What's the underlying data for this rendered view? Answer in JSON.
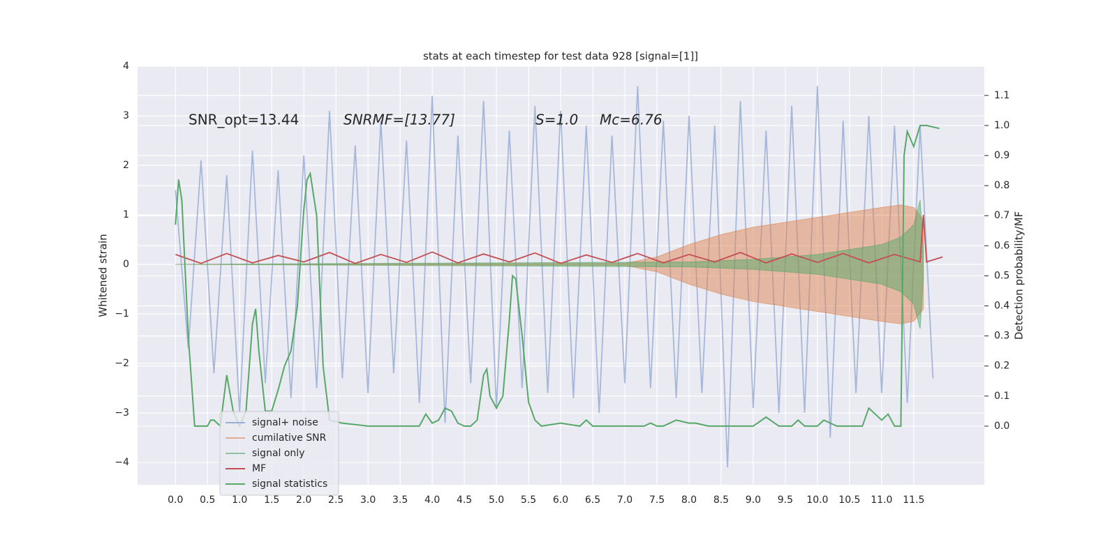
{
  "chart_data": {
    "type": "line",
    "title": "stats at each timestep for test data 928 [signal=[1]]",
    "y_label": "Whitened strain",
    "y2_label": "Detection probability/MF",
    "annotations": [
      "SNR_opt=13.44",
      "SNRMF=[13.77]",
      "S=1.0",
      "Mc=6.76"
    ],
    "xlim": [
      -0.59,
      12.6
    ],
    "ylim": [
      -4.45,
      4.0
    ],
    "y2lim": [
      -0.195,
      1.197
    ],
    "xticks": [
      {
        "value": 0,
        "label": "0.0"
      },
      0.5,
      {
        "value": 1,
        "label": "1.0"
      },
      1.5,
      {
        "value": 2,
        "label": "2.0"
      },
      2.5,
      {
        "value": 3,
        "label": "3.0"
      },
      3.5,
      {
        "value": 4,
        "label": "4.0"
      },
      4.5,
      {
        "value": 5,
        "label": "5.0"
      },
      5.5,
      {
        "value": 6,
        "label": "6.0"
      },
      6.5,
      {
        "value": 7,
        "label": "7.0"
      },
      7.5,
      {
        "value": 8,
        "label": "8.0"
      },
      8.5,
      {
        "value": 9,
        "label": "9.0"
      },
      9.5,
      {
        "value": 10,
        "label": "10.0"
      },
      10.5,
      {
        "value": 11,
        "label": "11.0"
      },
      11.5
    ],
    "yticks": [
      {
        "value": -4,
        "label": "−4"
      },
      {
        "value": -3,
        "label": "−3"
      },
      {
        "value": -2,
        "label": "−2"
      },
      {
        "value": -1,
        "label": "−1"
      },
      0,
      1,
      2,
      3,
      4
    ],
    "y2ticks": [
      {
        "value": 0,
        "label": "0.0"
      },
      0.1,
      0.2,
      0.3,
      0.4,
      0.5,
      0.6,
      0.7,
      0.8,
      0.9,
      {
        "value": 1,
        "label": "1.0"
      },
      1.1
    ],
    "grid": true,
    "legend": "lower left",
    "series": [
      {
        "name": "signal+ noise",
        "style": "line",
        "color": "#9aaed3",
        "x": [
          0,
          0.2,
          0.4,
          0.6,
          0.8,
          1,
          1.2,
          1.4,
          1.6,
          1.8,
          2,
          2.2,
          2.4,
          2.6,
          2.8,
          3,
          3.2,
          3.4,
          3.6,
          3.8,
          4,
          4.2,
          4.4,
          4.6,
          4.8,
          5,
          5.2,
          5.4,
          5.6,
          5.8,
          6,
          6.2,
          6.4,
          6.6,
          6.8,
          7,
          7.2,
          7.4,
          7.6,
          7.8,
          8,
          8.2,
          8.4,
          8.6,
          8.8,
          9,
          9.2,
          9.4,
          9.6,
          9.8,
          10,
          10.2,
          10.4,
          10.6,
          10.8,
          11,
          11.2,
          11.4,
          11.6,
          11.8
        ],
        "values": [
          1.5,
          -1.7,
          2.1,
          -2.2,
          1.8,
          -3.0,
          2.3,
          -2.4,
          1.9,
          -2.7,
          2.2,
          -2.5,
          3.1,
          -2.3,
          2.4,
          -2.6,
          2.9,
          -2.2,
          2.5,
          -2.8,
          3.4,
          -3.2,
          2.6,
          -2.4,
          3.3,
          -2.9,
          2.7,
          -2.5,
          3.2,
          -2.6,
          3.1,
          -2.7,
          2.8,
          -3.0,
          2.6,
          -2.4,
          3.6,
          -2.5,
          2.9,
          -2.7,
          3.0,
          -2.6,
          2.8,
          -4.1,
          3.3,
          -2.9,
          2.7,
          -3.0,
          3.2,
          -3.0,
          3.6,
          -3.5,
          2.9,
          -2.6,
          3.0,
          -2.6,
          2.8,
          -2.8,
          2.8,
          -2.3
        ]
      },
      {
        "name": "cumilative SNR",
        "style": "band",
        "color": "#dd8452",
        "x": [
          0,
          7.0,
          7.5,
          8.0,
          8.5,
          9.0,
          9.5,
          10.0,
          10.5,
          11.0,
          11.3,
          11.5,
          11.65
        ],
        "values": [
          0,
          0.02,
          0.15,
          0.4,
          0.6,
          0.75,
          0.85,
          0.95,
          1.05,
          1.15,
          1.2,
          1.15,
          0.9
        ]
      },
      {
        "name": "signal only",
        "style": "band",
        "color": "#55a868",
        "x": [
          0,
          8,
          9,
          10,
          10.5,
          11,
          11.3,
          11.5,
          11.6,
          11.65
        ],
        "values": [
          0,
          0.05,
          0.1,
          0.2,
          0.3,
          0.4,
          0.55,
          0.8,
          1.3,
          0.3
        ]
      },
      {
        "name": "MF",
        "style": "line",
        "color": "#c44e52",
        "x": [
          0,
          0.4,
          0.8,
          1.2,
          1.6,
          2,
          2.4,
          2.8,
          3.2,
          3.6,
          4,
          4.4,
          4.8,
          5.2,
          5.6,
          6,
          6.4,
          6.8,
          7.2,
          7.6,
          8,
          8.4,
          8.8,
          9.2,
          9.6,
          10,
          10.4,
          10.8,
          11.2,
          11.6,
          11.65,
          11.7,
          11.95
        ],
        "values": [
          0.2,
          0.02,
          0.22,
          0.03,
          0.18,
          0.05,
          0.24,
          0.02,
          0.2,
          0.04,
          0.25,
          0.03,
          0.21,
          0.05,
          0.23,
          0.02,
          0.19,
          0.04,
          0.22,
          0.03,
          0.2,
          0.05,
          0.24,
          0.03,
          0.21,
          0.04,
          0.22,
          0.03,
          0.2,
          0.05,
          1.0,
          0.05,
          0.15
        ]
      },
      {
        "name": "signal statistics",
        "style": "line",
        "axis": "y2",
        "color": "#55a868",
        "x": [
          0,
          0.05,
          0.1,
          0.2,
          0.3,
          0.4,
          0.5,
          0.55,
          0.6,
          0.7,
          0.8,
          0.9,
          1.0,
          1.1,
          1.2,
          1.25,
          1.3,
          1.4,
          1.5,
          1.6,
          1.7,
          1.8,
          1.9,
          2.0,
          2.05,
          2.1,
          2.2,
          2.3,
          2.4,
          2.6,
          3.0,
          3.5,
          3.8,
          3.9,
          4.0,
          4.1,
          4.2,
          4.3,
          4.4,
          4.5,
          4.6,
          4.7,
          4.8,
          4.85,
          4.9,
          5.0,
          5.1,
          5.2,
          5.25,
          5.3,
          5.4,
          5.5,
          5.6,
          5.7,
          6.0,
          6.3,
          6.4,
          6.5,
          7.0,
          7.3,
          7.4,
          7.5,
          7.6,
          7.8,
          8.0,
          8.1,
          8.3,
          9.0,
          9.2,
          9.4,
          9.6,
          9.7,
          9.8,
          10.0,
          10.1,
          10.3,
          10.7,
          10.8,
          10.9,
          11.0,
          11.1,
          11.2,
          11.3,
          11.35,
          11.4,
          11.5,
          11.6,
          11.7,
          11.9
        ],
        "values": [
          0.67,
          0.82,
          0.75,
          0.3,
          0,
          0,
          0,
          0.02,
          0.02,
          0,
          0.17,
          0.05,
          0,
          0.05,
          0.34,
          0.39,
          0.25,
          0.05,
          0.05,
          0.12,
          0.2,
          0.25,
          0.4,
          0.72,
          0.82,
          0.84,
          0.7,
          0.2,
          0.02,
          0.01,
          0,
          0,
          0,
          0.04,
          0.01,
          0.02,
          0.06,
          0.05,
          0.01,
          0,
          0,
          0.02,
          0.17,
          0.19,
          0.1,
          0.06,
          0.1,
          0.35,
          0.5,
          0.49,
          0.3,
          0.08,
          0.02,
          0,
          0.01,
          0,
          0.02,
          0,
          0,
          0,
          0.01,
          0,
          0,
          0.02,
          0.01,
          0.01,
          0,
          0,
          0.03,
          0,
          0,
          0.02,
          0,
          0,
          0.02,
          0,
          0,
          0.06,
          0.04,
          0.02,
          0.04,
          0,
          0,
          0.9,
          0.98,
          0.93,
          1.0,
          1.0,
          0.99
        ]
      }
    ]
  }
}
